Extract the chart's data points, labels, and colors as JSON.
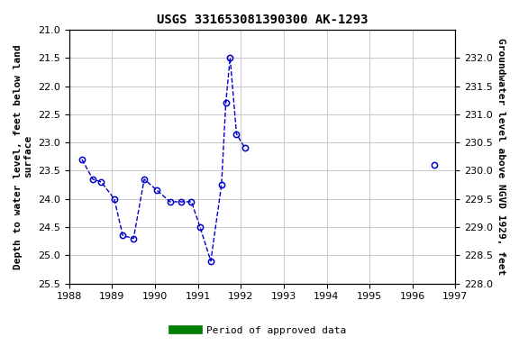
{
  "title": "USGS 331653081390300 AK-1293",
  "ylabel_left": "Depth to water level, feet below land\nsurface",
  "ylabel_right": "Groundwater level above NGVD 1929, feet",
  "x_data_main": [
    1988.3,
    1988.55,
    1988.75,
    1989.05,
    1989.25,
    1989.5,
    1989.75,
    1990.05,
    1990.35,
    1990.6,
    1990.85,
    1991.05,
    1991.3,
    1991.55,
    1991.65,
    1991.75,
    1991.9,
    1992.1
  ],
  "y_data_main": [
    23.3,
    23.65,
    23.7,
    24.0,
    24.65,
    24.7,
    23.65,
    23.85,
    24.05,
    24.05,
    24.05,
    24.5,
    25.1,
    23.75,
    22.3,
    21.5,
    22.85,
    23.1
  ],
  "x_data_isolated": [
    1996.5
  ],
  "y_data_isolated": [
    23.4
  ],
  "xlim": [
    1988,
    1997
  ],
  "ylim_left": [
    25.5,
    21.0
  ],
  "ylim_right": [
    228.0,
    232.5
  ],
  "xticks": [
    1988,
    1989,
    1990,
    1991,
    1992,
    1993,
    1994,
    1995,
    1996,
    1997
  ],
  "yticks_left": [
    21.0,
    21.5,
    22.0,
    22.5,
    23.0,
    23.5,
    24.0,
    24.5,
    25.0,
    25.5
  ],
  "yticks_right": [
    228.0,
    228.5,
    229.0,
    229.5,
    230.0,
    230.5,
    231.0,
    231.5,
    232.0
  ],
  "line_color": "#0000cc",
  "text_color": "#000000",
  "green_bar_x_start": 1988.05,
  "green_bar_x_end": 1991.75,
  "green_bar2_x_start": 1996.42,
  "green_bar2_x_end": 1996.58,
  "background_color": "#ffffff",
  "grid_color": "#c8c8c8",
  "title_fontsize": 10,
  "axis_label_fontsize": 8,
  "tick_fontsize": 8,
  "legend_label": "Period of approved data",
  "legend_color": "#008000"
}
